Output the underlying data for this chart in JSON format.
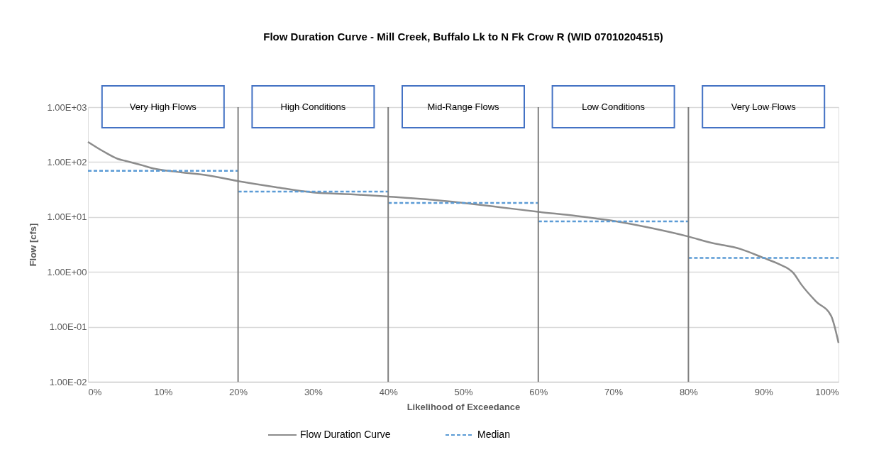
{
  "chart_data": {
    "type": "line",
    "title": "Flow Duration Curve - Mill Creek, Buffalo Lk to N Fk Crow R (WID 07010204515)",
    "xlabel": "Likelihood of Exceedance",
    "ylabel": "Flow [cfs]",
    "series": [
      {
        "name": "Flow Duration Curve",
        "color": "#8c8c8c",
        "line_style": "solid",
        "x": [
          0,
          2,
          4,
          5,
          7,
          9,
          12,
          16,
          20,
          25,
          30,
          35,
          40,
          45,
          50,
          55,
          60,
          65,
          70,
          75,
          80,
          83,
          87,
          90,
          92,
          94,
          95,
          97,
          99,
          100
        ],
        "values": [
          233,
          158,
          114,
          105,
          89,
          75,
          66,
          57,
          45,
          35,
          28,
          26,
          23.5,
          21,
          18,
          15,
          12.4,
          10.5,
          8.5,
          6.3,
          4.4,
          3.4,
          2.6,
          1.8,
          1.4,
          0.95,
          0.6,
          0.29,
          0.16,
          0.051
        ]
      },
      {
        "name": "Median",
        "color": "#5b9bd5",
        "line_style": "dashed",
        "x": [
          0,
          20
        ],
        "values": [
          69,
          69
        ]
      },
      {
        "color": "#5b9bd5",
        "line_style": "dashed",
        "x": [
          20,
          40
        ],
        "values": [
          29,
          29
        ]
      },
      {
        "color": "#5b9bd5",
        "line_style": "dashed",
        "x": [
          40,
          60
        ],
        "values": [
          18,
          18
        ]
      },
      {
        "color": "#5b9bd5",
        "line_style": "dashed",
        "x": [
          60,
          80
        ],
        "values": [
          8.3,
          8.3
        ]
      },
      {
        "color": "#5b9bd5",
        "line_style": "dashed",
        "x": [
          80,
          100
        ],
        "values": [
          1.8,
          1.8
        ]
      }
    ],
    "log": "y",
    "xlim": [
      0,
      100
    ],
    "ylim": [
      0.01,
      1000
    ],
    "xticks": [
      {
        "value": 0,
        "label": "0%"
      },
      {
        "value": 10,
        "label": "10%"
      },
      {
        "value": 20,
        "label": "20%"
      },
      {
        "value": 30,
        "label": "30%"
      },
      {
        "value": 40,
        "label": "40%"
      },
      {
        "value": 50,
        "label": "50%"
      },
      {
        "value": 60,
        "label": "60%"
      },
      {
        "value": 70,
        "label": "70%"
      },
      {
        "value": 80,
        "label": "80%"
      },
      {
        "value": 90,
        "label": "90%"
      },
      {
        "value": 100,
        "label": "100%"
      }
    ],
    "yticks": [
      {
        "value": 0.01,
        "label": "1.00E-02"
      },
      {
        "value": 0.1,
        "label": "1.00E-01"
      },
      {
        "value": 1,
        "label": "1.00E+00"
      },
      {
        "value": 10,
        "label": "1.00E+01"
      },
      {
        "value": 100,
        "label": "1.00E+02"
      },
      {
        "value": 1000,
        "label": "1.00E+03"
      }
    ],
    "grid": "y",
    "legend": "bottom",
    "ref_lines": [
      {
        "axis": "x",
        "value": 20,
        "color": "#808080"
      },
      {
        "axis": "x",
        "value": 40,
        "color": "#808080"
      },
      {
        "axis": "x",
        "value": 60,
        "color": "#808080"
      },
      {
        "axis": "x",
        "value": 80,
        "color": "#808080"
      }
    ],
    "annotations": [
      "Very High Flows",
      "High Conditions",
      "Mid-Range Flows",
      "Low Conditions",
      "Very Low Flows"
    ]
  }
}
